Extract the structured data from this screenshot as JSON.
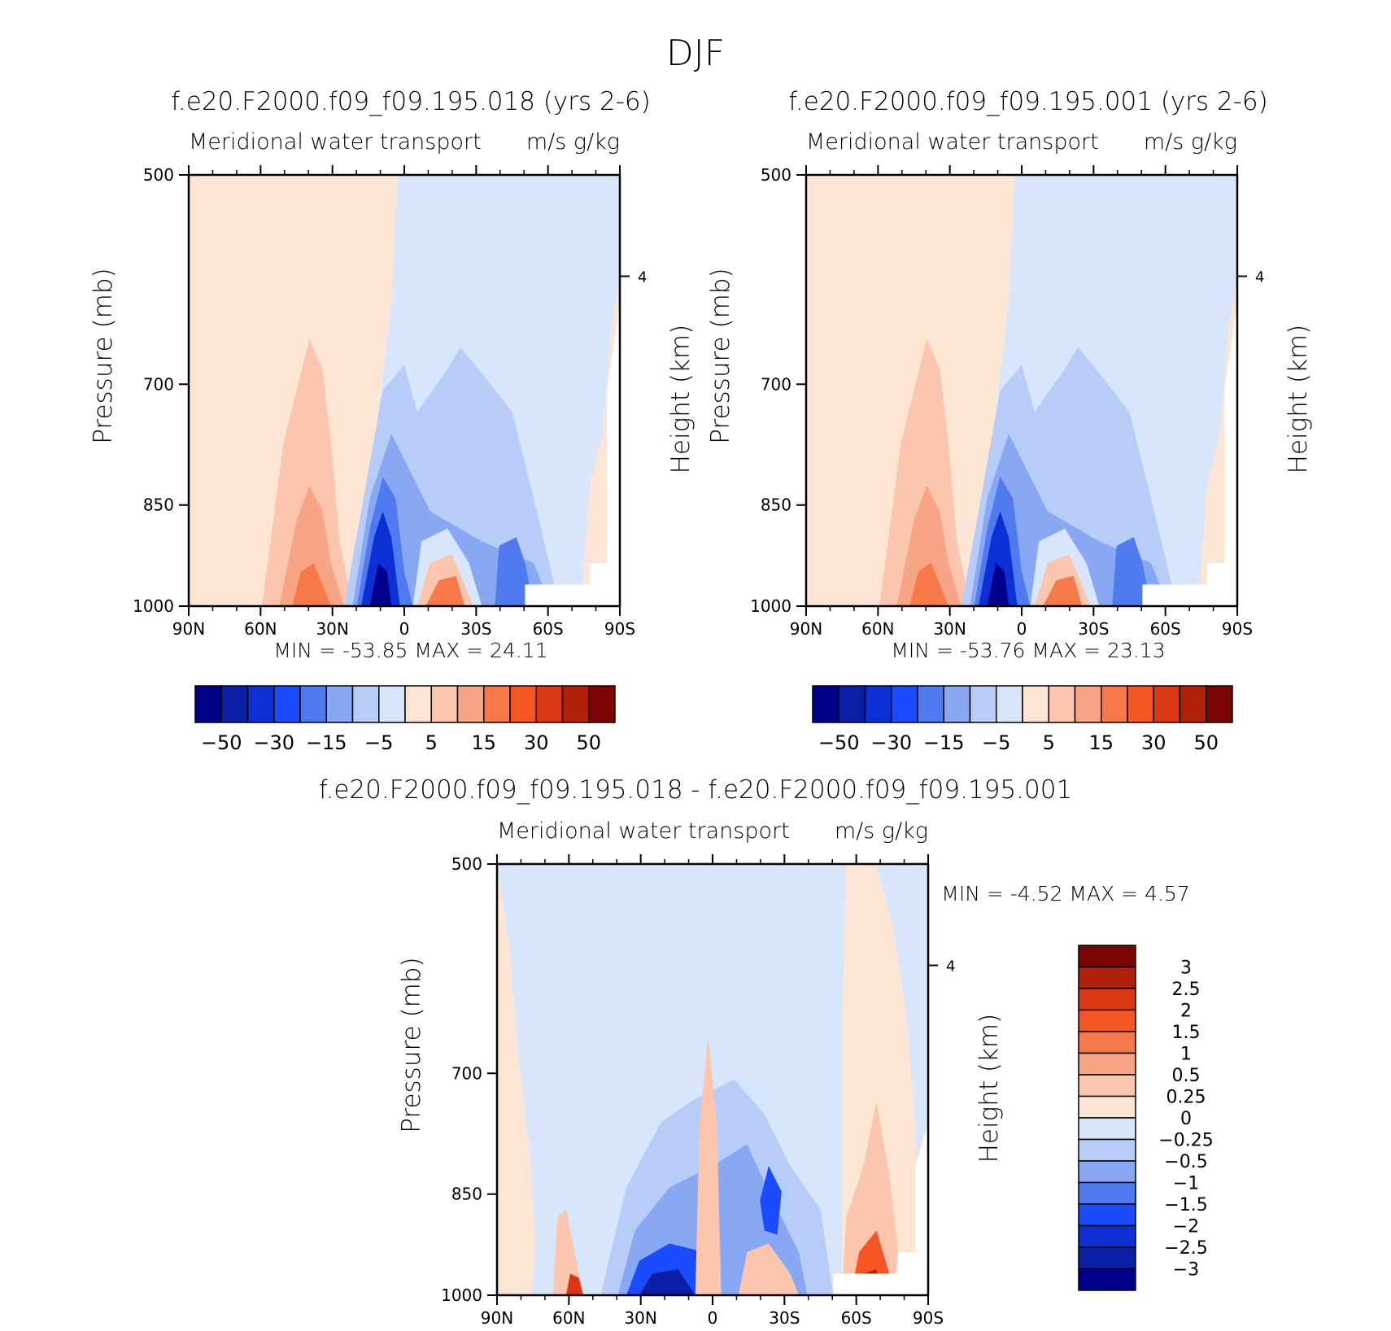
{
  "page_title": "DJF",
  "chart_data": [
    {
      "id": "case1",
      "type": "contour",
      "title": "f.e20.F2000.f09_f09.195.018 (yrs 2-6)",
      "subtitle_left": "Meridional water transport",
      "subtitle_right": "m/s g/kg",
      "ylabel": "Pressure (mb)",
      "ylabel_right": "Height (km)",
      "xlabel": "",
      "x_ticklabels": [
        "90N",
        "60N",
        "30N",
        "0",
        "30S",
        "60S",
        "90S"
      ],
      "x_range": [
        90,
        -90
      ],
      "y_ticklabels": [
        "500",
        "700",
        "850",
        "1000"
      ],
      "y_range": [
        500,
        1000
      ],
      "right_ticklabels": [
        "4"
      ],
      "min_label": "MIN =",
      "min_value": "-53.85",
      "max_label": "MAX =",
      "max_value": "24.11",
      "colorbar": {
        "orientation": "horizontal",
        "colors": [
          "#00008b",
          "#0a1ea6",
          "#0d2fd6",
          "#1b4bff",
          "#4f7af0",
          "#89a8f4",
          "#b7ccf7",
          "#d7e6fb",
          "#fde5d6",
          "#fbc6ad",
          "#f8a585",
          "#f7794a",
          "#f55523",
          "#dc3714",
          "#b12109",
          "#7d0404"
        ],
        "tick_labels": [
          "-50",
          "-30",
          "-15",
          "-5",
          "5",
          "15",
          "30",
          "50"
        ]
      },
      "regions": [
        {
          "name": "southern-hemisphere-negative",
          "level": "-5 to 0",
          "color": "#d7e6fb"
        },
        {
          "name": "northern-hemisphere-positive",
          "level": "0 to 5",
          "color": "#fde5d6"
        },
        {
          "name": "midlatitude-positive-lobe",
          "level": "5 to 10",
          "color": "#fbc6ad"
        },
        {
          "name": "tropical-negative-core",
          "level": "-53.85 min",
          "color": "#00008b"
        }
      ]
    },
    {
      "id": "case2",
      "type": "contour",
      "title": "f.e20.F2000.f09_f09.195.001 (yrs 2-6)",
      "subtitle_left": "Meridional water transport",
      "subtitle_right": "m/s g/kg",
      "ylabel": "Pressure (mb)",
      "ylabel_right": "Height (km)",
      "xlabel": "",
      "x_ticklabels": [
        "90N",
        "60N",
        "30N",
        "0",
        "30S",
        "60S",
        "90S"
      ],
      "x_range": [
        90,
        -90
      ],
      "y_ticklabels": [
        "500",
        "700",
        "850",
        "1000"
      ],
      "y_range": [
        500,
        1000
      ],
      "right_ticklabels": [
        "4"
      ],
      "min_label": "MIN =",
      "min_value": "-53.76",
      "max_label": "MAX =",
      "max_value": "23.13",
      "colorbar": {
        "orientation": "horizontal",
        "colors": [
          "#00008b",
          "#0a1ea6",
          "#0d2fd6",
          "#1b4bff",
          "#4f7af0",
          "#89a8f4",
          "#b7ccf7",
          "#d7e6fb",
          "#fde5d6",
          "#fbc6ad",
          "#f8a585",
          "#f7794a",
          "#f55523",
          "#dc3714",
          "#b12109",
          "#7d0404"
        ],
        "tick_labels": [
          "-50",
          "-30",
          "-15",
          "-5",
          "5",
          "15",
          "30",
          "50"
        ]
      },
      "regions": [
        {
          "name": "southern-hemisphere-negative",
          "level": "-5 to 0",
          "color": "#d7e6fb"
        },
        {
          "name": "northern-hemisphere-positive",
          "level": "0 to 5",
          "color": "#fde5d6"
        },
        {
          "name": "midlatitude-positive-lobe",
          "level": "5 to 10",
          "color": "#fbc6ad"
        },
        {
          "name": "tropical-negative-core",
          "level": "-53.76 min",
          "color": "#00008b"
        }
      ]
    },
    {
      "id": "difference",
      "type": "contour",
      "title": "f.e20.F2000.f09_f09.195.018 - f.e20.F2000.f09_f09.195.001",
      "subtitle_left": "Meridional water transport",
      "subtitle_right": "m/s g/kg",
      "ylabel": "Pressure (mb)",
      "ylabel_right": "Height (km)",
      "xlabel": "",
      "x_ticklabels": [
        "90N",
        "60N",
        "30N",
        "0",
        "30S",
        "60S",
        "90S"
      ],
      "x_range": [
        90,
        -90
      ],
      "y_ticklabels": [
        "500",
        "700",
        "850",
        "1000"
      ],
      "y_range": [
        500,
        1000
      ],
      "right_ticklabels": [
        "4"
      ],
      "min_label": "MIN =",
      "min_value": "-4.52",
      "max_label": "MAX =",
      "max_value": "4.57",
      "colorbar": {
        "orientation": "vertical",
        "colors": [
          "#00008b",
          "#0a1ea6",
          "#0d2fd6",
          "#1b4bff",
          "#4f7af0",
          "#89a8f4",
          "#b7ccf7",
          "#d7e6fb",
          "#fde5d6",
          "#fbc6ad",
          "#f8a585",
          "#f7794a",
          "#f55523",
          "#dc3714",
          "#b12109",
          "#7d0404"
        ],
        "tick_labels": [
          "3",
          "2.5",
          "2",
          "1.5",
          "1",
          "0.5",
          "0.25",
          "0",
          "-0.25",
          "-0.5",
          "-1",
          "-1.5",
          "-2",
          "-2.5",
          "-3"
        ]
      },
      "regions": [
        {
          "name": "background-negative",
          "level": "-0.25 to 0",
          "color": "#d7e6fb"
        },
        {
          "name": "polar-positive",
          "level": "0 to 0.25",
          "color": "#fde5d6"
        },
        {
          "name": "tropical-negative-lobe",
          "level": "-1 to -0.5",
          "color": "#89a8f4"
        },
        {
          "name": "southern-positive-core",
          "level": "2 to 4.57",
          "color": "#b12109"
        }
      ]
    }
  ]
}
